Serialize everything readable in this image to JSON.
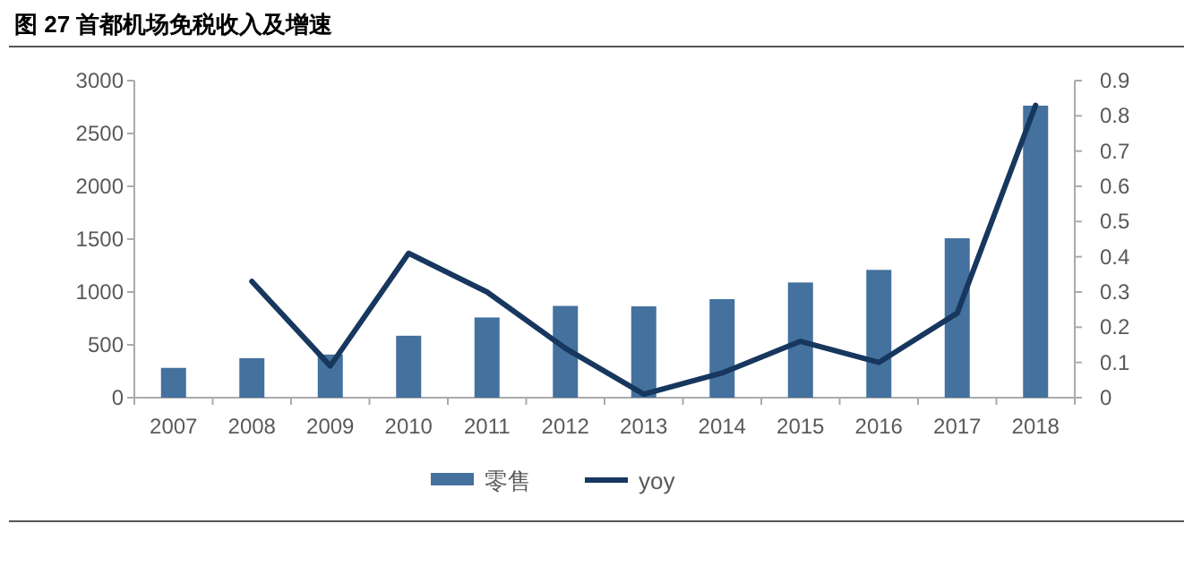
{
  "chart_data": {
    "type": "bar",
    "title": "图 27 首都机场免税收入及增速",
    "categories": [
      "2007",
      "2008",
      "2009",
      "2010",
      "2011",
      "2012",
      "2013",
      "2014",
      "2015",
      "2016",
      "2017",
      "2018"
    ],
    "series": [
      {
        "name": "零售",
        "color": "#44719e",
        "values": [
          282,
          374,
          408,
          586,
          759,
          868,
          864,
          932,
          1090,
          1209,
          1508,
          2763
        ]
      },
      {
        "name": "yoy",
        "type": "line",
        "axis": "y2",
        "color": "#17375e",
        "values": [
          null,
          0.33,
          0.09,
          0.41,
          0.3,
          0.14,
          0.01,
          0.07,
          0.16,
          0.1,
          0.24,
          0.83
        ]
      }
    ],
    "ylim": [
      0,
      3000
    ],
    "yticks": [
      0,
      500,
      1000,
      1500,
      2000,
      2500,
      3000
    ],
    "y2lim": [
      0,
      0.9
    ],
    "y2ticks": [
      0,
      0.1,
      0.2,
      0.3,
      0.4,
      0.5,
      0.6,
      0.7,
      0.8,
      0.9
    ],
    "legend": "bottom",
    "grid": false,
    "marker": "none",
    "line_style": "solid"
  }
}
